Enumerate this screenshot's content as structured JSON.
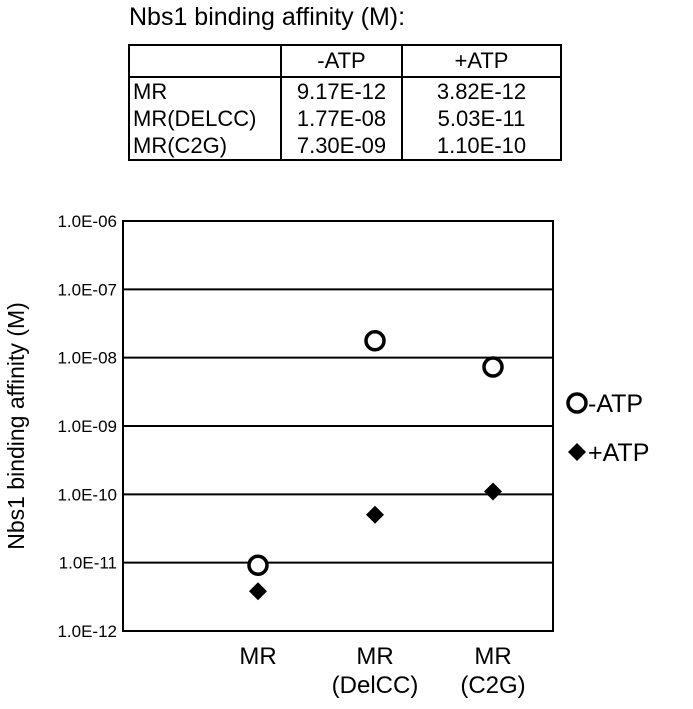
{
  "table": {
    "title": "Nbs1 binding affinity (M):",
    "headers": [
      "",
      "-ATP",
      "+ATP"
    ],
    "rows": [
      [
        "MR",
        "9.17E-12",
        "3.82E-12"
      ],
      [
        "MR(DELCC)",
        "1.77E-08",
        "5.03E-11"
      ],
      [
        "MR(C2G)",
        "7.30E-09",
        "1.10E-10"
      ]
    ]
  },
  "chart_data": {
    "type": "scatter",
    "ylabel": "Nbs1 binding affinity (M)",
    "xlabel": "",
    "yscale": "log",
    "ylim": [
      1e-12,
      1e-06
    ],
    "yticks": [
      "1.0E-12",
      "1.0E-11",
      "1.0E-10",
      "1.0E-09",
      "1.0E-08",
      "1.0E-07",
      "1.0E-06"
    ],
    "categories": [
      [
        "MR"
      ],
      [
        "MR",
        "(DelCC)"
      ],
      [
        "MR",
        "(C2G)"
      ]
    ],
    "grid": true,
    "legend_position": "right",
    "series": [
      {
        "name": "-ATP",
        "marker": "open-circle",
        "values": [
          9.17e-12,
          1.77e-08,
          7.3e-09
        ]
      },
      {
        "name": "+ATP",
        "marker": "filled-diamond",
        "values": [
          3.82e-12,
          5.03e-11,
          1.1e-10
        ]
      }
    ]
  }
}
